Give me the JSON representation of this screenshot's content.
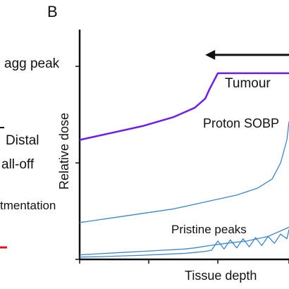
{
  "panel_label": "B",
  "left_panel_fragments": {
    "lines": [
      "agg peak",
      "Distal",
      "all-off",
      "tmentation"
    ],
    "marks": [
      {
        "color": "#111111"
      },
      {
        "color": "#e0161c"
      }
    ]
  },
  "chart_data": {
    "type": "line",
    "xlabel": "Tissue depth",
    "ylabel": "Relative dose",
    "xlim": [
      0,
      1
    ],
    "ylim": [
      0,
      1
    ],
    "xticks": [
      0.0,
      0.33,
      0.66,
      1.0
    ],
    "yticks": [
      0.0,
      0.42,
      0.84
    ],
    "grid": false,
    "annotations": [
      {
        "text": "Tumour",
        "arrow": "leftward",
        "from_x": 1.0,
        "to_x": 0.6,
        "y": 0.89
      },
      {
        "text": "Proton SOBP",
        "x": 0.58,
        "y": 0.72,
        "color": "#6a1ef2"
      },
      {
        "text": "Pristine peaks",
        "x": 0.45,
        "y": 0.14,
        "color": "#3b86cf"
      }
    ],
    "series": [
      {
        "color": "#6a1ef2",
        "x": [
          0.0,
          0.15,
          0.3,
          0.45,
          0.55,
          0.6,
          0.62,
          0.66,
          0.8,
          0.9,
          1.0
        ],
        "y": [
          0.52,
          0.55,
          0.58,
          0.62,
          0.66,
          0.7,
          0.74,
          0.81,
          0.81,
          0.81,
          0.81
        ]
      },
      {
        "color": "#3b86cf",
        "x": [
          0.0,
          0.15,
          0.3,
          0.45,
          0.6,
          0.75,
          0.85,
          0.92,
          0.96,
          0.99,
          1.0
        ],
        "y": [
          0.16,
          0.18,
          0.2,
          0.22,
          0.25,
          0.28,
          0.31,
          0.35,
          0.42,
          0.52,
          0.6
        ]
      },
      {
        "color": "#3b86cf",
        "x": [
          0.0,
          0.1,
          0.2,
          0.3,
          0.4,
          0.5,
          0.55,
          0.62,
          0.7,
          0.8,
          0.9,
          0.95,
          1.0
        ],
        "y": [
          0.02,
          0.025,
          0.03,
          0.035,
          0.04,
          0.045,
          0.05,
          0.06,
          0.07,
          0.08,
          0.1,
          0.12,
          0.14
        ]
      },
      {
        "color": "#3b86cf",
        "x": [
          0.0,
          0.1,
          0.2,
          0.3,
          0.4,
          0.5,
          0.55,
          0.6,
          0.63,
          0.66,
          0.69,
          0.72,
          0.75,
          0.78,
          0.81,
          0.84,
          0.87,
          0.9,
          0.93,
          0.96,
          0.99,
          1.0
        ],
        "y": [
          0.01,
          0.012,
          0.015,
          0.018,
          0.022,
          0.026,
          0.03,
          0.035,
          0.04,
          0.08,
          0.045,
          0.085,
          0.05,
          0.09,
          0.055,
          0.095,
          0.06,
          0.1,
          0.07,
          0.11,
          0.09,
          0.13
        ]
      }
    ]
  }
}
